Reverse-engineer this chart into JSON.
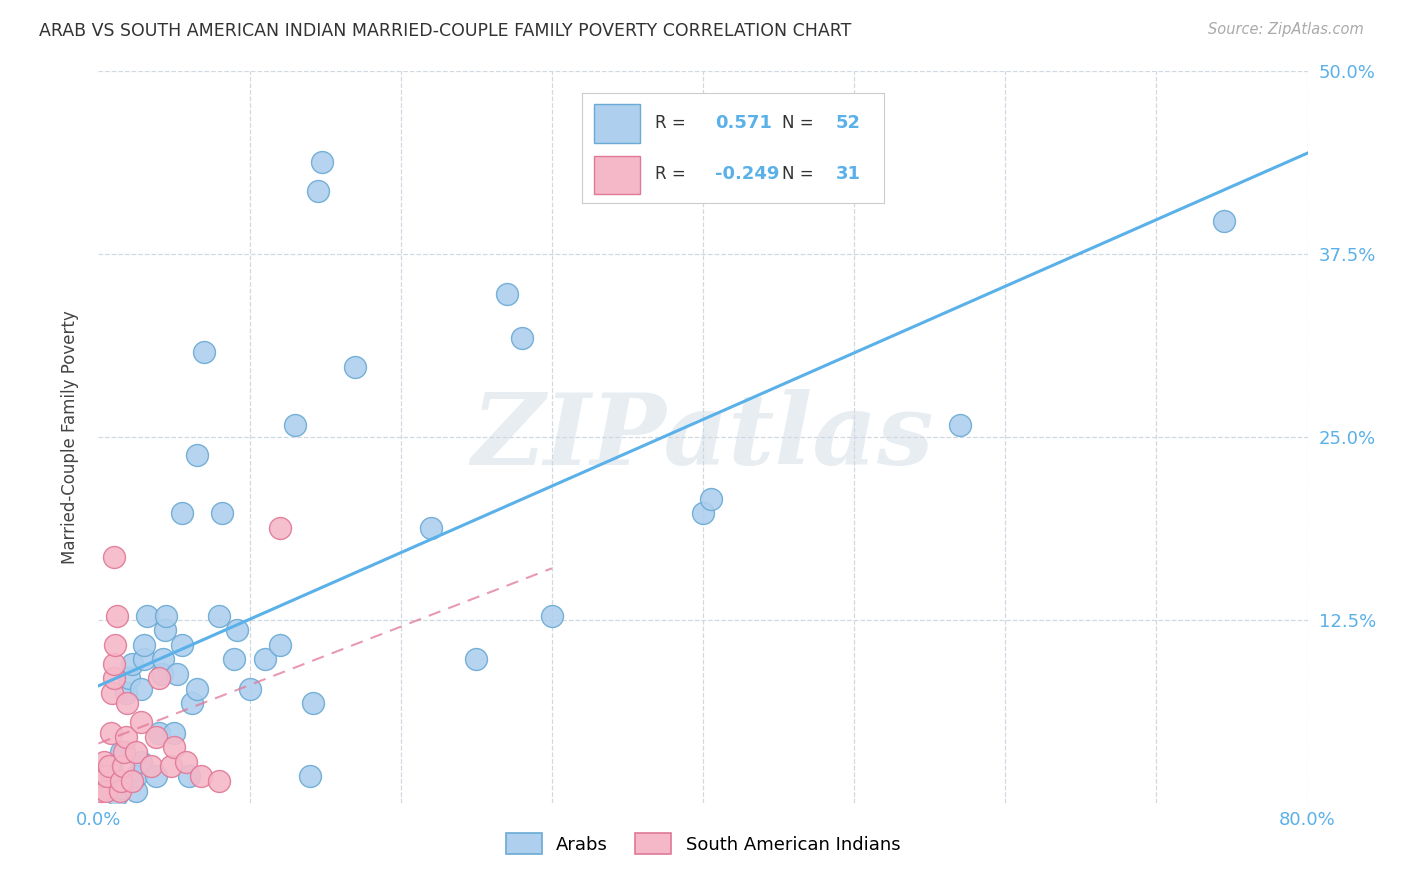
{
  "title": "ARAB VS SOUTH AMERICAN INDIAN MARRIED-COUPLE FAMILY POVERTY CORRELATION CHART",
  "source": "Source: ZipAtlas.com",
  "ylabel": "Married-Couple Family Poverty",
  "xlim": [
    0.0,
    0.8
  ],
  "ylim": [
    0.0,
    0.5
  ],
  "xtick_positions": [
    0.0,
    0.1,
    0.2,
    0.3,
    0.4,
    0.5,
    0.6,
    0.7,
    0.8
  ],
  "ytick_positions": [
    0.0,
    0.125,
    0.25,
    0.375,
    0.5
  ],
  "arab_color": "#aecfee",
  "arab_edge_color": "#6aaad4",
  "sai_color": "#f5b8c8",
  "sai_edge_color": "#e07898",
  "arab_line_color": "#5ab0e8",
  "sai_line_color": "#e07898",
  "tick_color": "#5ab0e8",
  "grid_color": "#d0d8e0",
  "watermark": "ZIPatlas",
  "watermark_color": "#ccd8e4",
  "arab_R": "0.571",
  "arab_N": "52",
  "sai_R": "-0.249",
  "sai_N": "31",
  "arab_scatter": [
    [
      0.005,
      0.015
    ],
    [
      0.008,
      0.025
    ],
    [
      0.012,
      0.005
    ],
    [
      0.015,
      0.01
    ],
    [
      0.015,
      0.035
    ],
    [
      0.018,
      0.075
    ],
    [
      0.02,
      0.085
    ],
    [
      0.022,
      0.095
    ],
    [
      0.025,
      0.008
    ],
    [
      0.025,
      0.018
    ],
    [
      0.028,
      0.028
    ],
    [
      0.028,
      0.078
    ],
    [
      0.03,
      0.098
    ],
    [
      0.03,
      0.108
    ],
    [
      0.032,
      0.128
    ],
    [
      0.038,
      0.018
    ],
    [
      0.04,
      0.048
    ],
    [
      0.042,
      0.088
    ],
    [
      0.043,
      0.098
    ],
    [
      0.044,
      0.118
    ],
    [
      0.045,
      0.128
    ],
    [
      0.05,
      0.048
    ],
    [
      0.052,
      0.088
    ],
    [
      0.055,
      0.108
    ],
    [
      0.055,
      0.198
    ],
    [
      0.06,
      0.018
    ],
    [
      0.062,
      0.068
    ],
    [
      0.065,
      0.078
    ],
    [
      0.065,
      0.238
    ],
    [
      0.07,
      0.308
    ],
    [
      0.08,
      0.128
    ],
    [
      0.082,
      0.198
    ],
    [
      0.09,
      0.098
    ],
    [
      0.092,
      0.118
    ],
    [
      0.1,
      0.078
    ],
    [
      0.11,
      0.098
    ],
    [
      0.12,
      0.108
    ],
    [
      0.13,
      0.258
    ],
    [
      0.14,
      0.018
    ],
    [
      0.142,
      0.068
    ],
    [
      0.145,
      0.418
    ],
    [
      0.148,
      0.438
    ],
    [
      0.17,
      0.298
    ],
    [
      0.22,
      0.188
    ],
    [
      0.25,
      0.098
    ],
    [
      0.27,
      0.348
    ],
    [
      0.28,
      0.318
    ],
    [
      0.3,
      0.128
    ],
    [
      0.4,
      0.198
    ],
    [
      0.405,
      0.208
    ],
    [
      0.57,
      0.258
    ],
    [
      0.745,
      0.398
    ]
  ],
  "sai_scatter": [
    [
      0.002,
      0.008
    ],
    [
      0.003,
      0.018
    ],
    [
      0.004,
      0.028
    ],
    [
      0.005,
      0.008
    ],
    [
      0.006,
      0.018
    ],
    [
      0.007,
      0.025
    ],
    [
      0.008,
      0.048
    ],
    [
      0.009,
      0.075
    ],
    [
      0.01,
      0.085
    ],
    [
      0.01,
      0.095
    ],
    [
      0.011,
      0.108
    ],
    [
      0.012,
      0.128
    ],
    [
      0.014,
      0.008
    ],
    [
      0.015,
      0.015
    ],
    [
      0.016,
      0.025
    ],
    [
      0.017,
      0.035
    ],
    [
      0.018,
      0.045
    ],
    [
      0.019,
      0.068
    ],
    [
      0.022,
      0.015
    ],
    [
      0.025,
      0.035
    ],
    [
      0.028,
      0.055
    ],
    [
      0.035,
      0.025
    ],
    [
      0.038,
      0.045
    ],
    [
      0.04,
      0.085
    ],
    [
      0.048,
      0.025
    ],
    [
      0.05,
      0.038
    ],
    [
      0.058,
      0.028
    ],
    [
      0.068,
      0.018
    ],
    [
      0.08,
      0.015
    ],
    [
      0.12,
      0.188
    ],
    [
      0.01,
      0.168
    ]
  ]
}
